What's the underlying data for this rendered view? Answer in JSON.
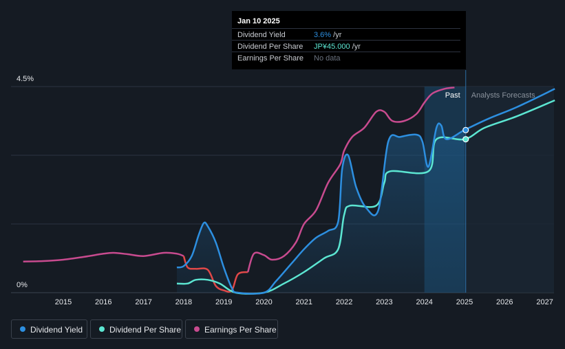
{
  "chart_data": {
    "type": "line",
    "y_axis": {
      "labels": [
        "4.5%",
        "0%"
      ],
      "range_percent": [
        0,
        4.5
      ]
    },
    "x_axis": {
      "ticks": [
        "2015",
        "2016",
        "2017",
        "2018",
        "2019",
        "2020",
        "2021",
        "2022",
        "2023",
        "2024",
        "2025",
        "2026",
        "2027"
      ],
      "range_years": [
        2014,
        2027.25
      ]
    },
    "past_label": "Past",
    "forecast_label": "Analysts Forecasts",
    "forecast_start_year": 2025.03,
    "past_shade_start_year": 2024.0,
    "colors": {
      "dividend_yield": "#2d8fe0",
      "dividend_per_share": "#5ce6d2",
      "earnings_per_share": "#c84b8f",
      "earnings_negative": "#e04848"
    },
    "series": [
      {
        "name": "Dividend Yield",
        "unit": "%",
        "key": "dividend_yield",
        "points": [
          [
            2017.83,
            0.55
          ],
          [
            2018.0,
            0.58
          ],
          [
            2018.2,
            0.8
          ],
          [
            2018.37,
            1.25
          ],
          [
            2018.5,
            1.52
          ],
          [
            2018.6,
            1.45
          ],
          [
            2018.8,
            1.1
          ],
          [
            2019.0,
            0.55
          ],
          [
            2019.2,
            0.1
          ],
          [
            2019.35,
            0.0
          ],
          [
            2020.0,
            0.0
          ],
          [
            2020.3,
            0.25
          ],
          [
            2020.7,
            0.65
          ],
          [
            2021.0,
            0.95
          ],
          [
            2021.3,
            1.2
          ],
          [
            2021.6,
            1.35
          ],
          [
            2021.85,
            1.55
          ],
          [
            2021.95,
            2.7
          ],
          [
            2022.1,
            3.0
          ],
          [
            2022.3,
            2.3
          ],
          [
            2022.55,
            1.85
          ],
          [
            2022.85,
            1.8
          ],
          [
            2023.1,
            3.3
          ],
          [
            2023.4,
            3.4
          ],
          [
            2023.8,
            3.45
          ],
          [
            2023.95,
            3.3
          ],
          [
            2024.1,
            2.75
          ],
          [
            2024.3,
            3.6
          ],
          [
            2024.42,
            3.65
          ],
          [
            2024.55,
            3.35
          ],
          [
            2025.0,
            3.55
          ],
          [
            2025.6,
            3.8
          ],
          [
            2026.3,
            4.05
          ],
          [
            2027.25,
            4.45
          ]
        ]
      },
      {
        "name": "Dividend Per Share",
        "unit": "JP¥",
        "key": "dividend_per_share",
        "points": [
          [
            2017.83,
            0.2
          ],
          [
            2018.1,
            0.2
          ],
          [
            2018.3,
            0.28
          ],
          [
            2018.6,
            0.28
          ],
          [
            2018.9,
            0.2
          ],
          [
            2019.3,
            0.0
          ],
          [
            2020.0,
            0.0
          ],
          [
            2020.5,
            0.2
          ],
          [
            2021.0,
            0.45
          ],
          [
            2021.5,
            0.75
          ],
          [
            2021.85,
            0.95
          ],
          [
            2022.0,
            1.7
          ],
          [
            2022.15,
            1.9
          ],
          [
            2022.8,
            1.9
          ],
          [
            2023.0,
            2.4
          ],
          [
            2023.15,
            2.65
          ],
          [
            2024.1,
            2.65
          ],
          [
            2024.3,
            3.35
          ],
          [
            2025.0,
            3.35
          ],
          [
            2025.5,
            3.6
          ],
          [
            2026.3,
            3.85
          ],
          [
            2027.25,
            4.2
          ]
        ]
      },
      {
        "name": "Earnings Per Share",
        "unit": "",
        "key": "earnings_per_share",
        "points": [
          [
            2014.0,
            0.68
          ],
          [
            2014.5,
            0.69
          ],
          [
            2015.0,
            0.72
          ],
          [
            2015.5,
            0.78
          ],
          [
            2016.0,
            0.85
          ],
          [
            2016.25,
            0.87
          ],
          [
            2016.6,
            0.84
          ],
          [
            2017.0,
            0.8
          ],
          [
            2017.5,
            0.87
          ],
          [
            2017.83,
            0.85
          ],
          [
            2018.0,
            0.8
          ],
          [
            2018.1,
            0.55
          ],
          [
            2018.3,
            0.52
          ],
          [
            2018.6,
            0.5
          ],
          [
            2018.8,
            0.15
          ],
          [
            2019.0,
            0.05
          ],
          [
            2019.2,
            0.05
          ],
          [
            2019.35,
            0.4
          ],
          [
            2019.6,
            0.45
          ],
          [
            2019.75,
            0.85
          ],
          [
            2020.0,
            0.82
          ],
          [
            2020.2,
            0.72
          ],
          [
            2020.5,
            0.8
          ],
          [
            2020.8,
            1.1
          ],
          [
            2021.0,
            1.5
          ],
          [
            2021.3,
            1.8
          ],
          [
            2021.6,
            2.4
          ],
          [
            2021.9,
            2.8
          ],
          [
            2022.0,
            3.1
          ],
          [
            2022.2,
            3.4
          ],
          [
            2022.5,
            3.6
          ],
          [
            2022.8,
            3.95
          ],
          [
            2023.0,
            3.95
          ],
          [
            2023.2,
            3.75
          ],
          [
            2023.5,
            3.75
          ],
          [
            2023.8,
            3.9
          ],
          [
            2024.0,
            4.15
          ],
          [
            2024.2,
            4.35
          ],
          [
            2024.5,
            4.45
          ],
          [
            2024.75,
            4.48
          ]
        ]
      }
    ],
    "markers": [
      {
        "series": "dividend_yield",
        "x": 2025.03,
        "y": 3.55
      },
      {
        "series": "dividend_per_share",
        "x": 2025.03,
        "y": 3.35
      }
    ]
  },
  "tooltip": {
    "date": "Jan 10 2025",
    "rows": [
      {
        "label": "Dividend Yield",
        "value": "3.6%",
        "suffix": " /yr",
        "value_color": "#2d8fe0"
      },
      {
        "label": "Dividend Per Share",
        "value": "JP¥45.000",
        "suffix": " /yr",
        "value_color": "#5ce6d2"
      },
      {
        "label": "Earnings Per Share",
        "value": "No data",
        "suffix": "",
        "value_color": "#6b7380"
      }
    ]
  },
  "legend": [
    {
      "label": "Dividend Yield",
      "color": "#2d8fe0"
    },
    {
      "label": "Dividend Per Share",
      "color": "#5ce6d2"
    },
    {
      "label": "Earnings Per Share",
      "color": "#c84b8f"
    }
  ]
}
